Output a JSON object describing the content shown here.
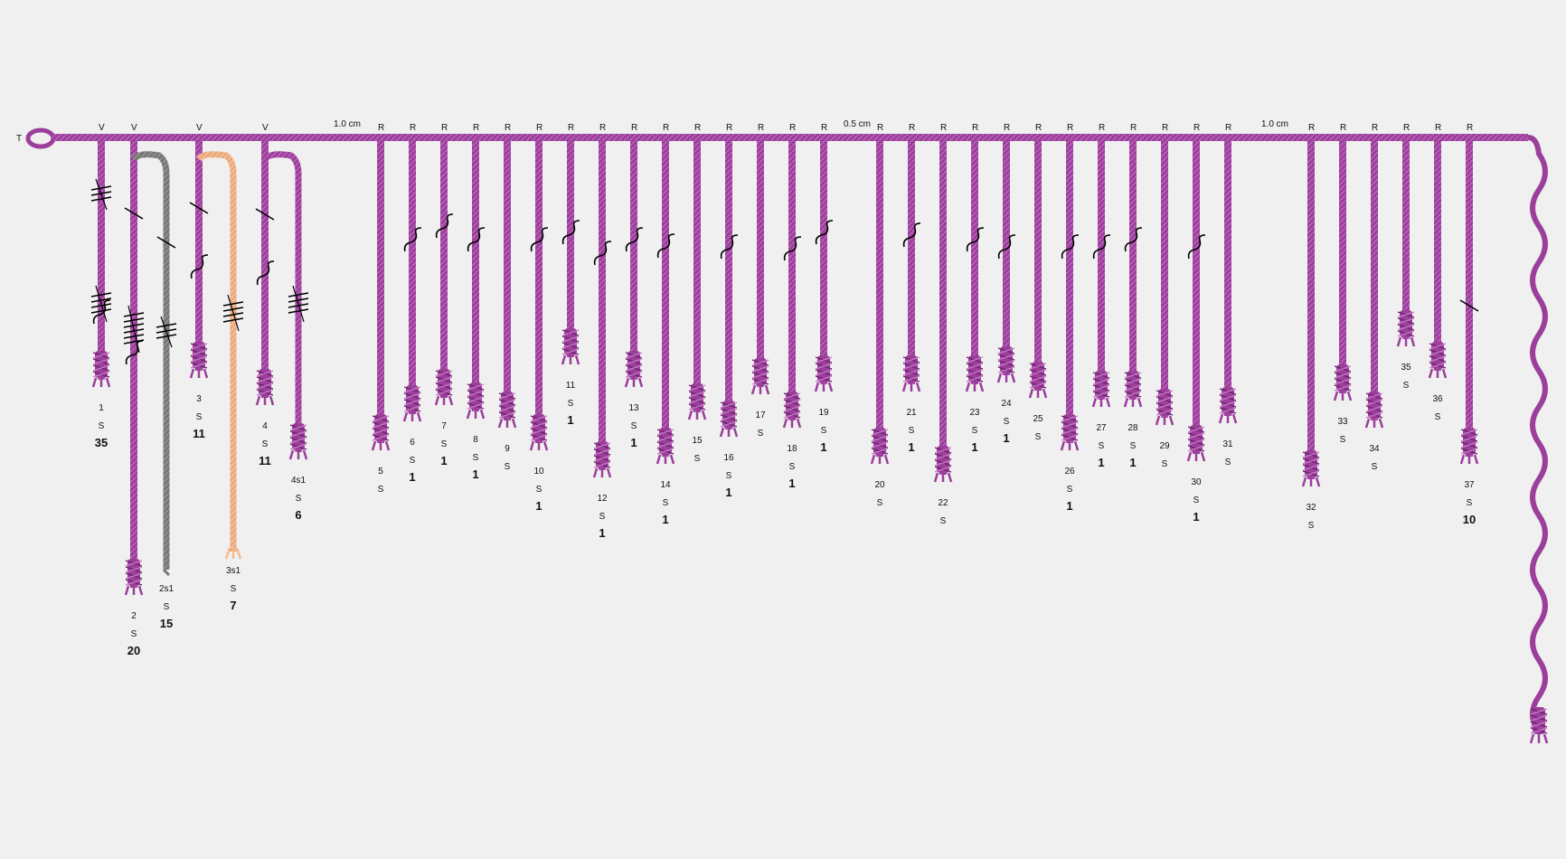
{
  "primary": {
    "start_label": "T",
    "spacing_labels": [
      "1.0 cm",
      "0.5 cm",
      "1.0 cm"
    ]
  },
  "colors": {
    "background": "#f0f0f0",
    "primary_cord": "#9b3f9b",
    "purple": "#9b3f9b",
    "gray": "#777777",
    "peach": "#f4b98e",
    "mark": "#000000"
  },
  "cords": [
    {
      "label": "1",
      "attach": "V",
      "type": "S",
      "value": "35",
      "color": "purple"
    },
    {
      "label": "2",
      "attach": "V",
      "type": "S",
      "value": "20",
      "color": "purple"
    },
    {
      "label": "2s1",
      "attach": "",
      "type": "S",
      "value": "15",
      "color": "gray",
      "subsidiary": true
    },
    {
      "label": "3",
      "attach": "V",
      "type": "S",
      "value": "11",
      "color": "purple"
    },
    {
      "label": "3s1",
      "attach": "",
      "type": "S",
      "value": "7",
      "color": "peach",
      "subsidiary": true
    },
    {
      "label": "4",
      "attach": "V",
      "type": "S",
      "value": "11",
      "color": "purple"
    },
    {
      "label": "4s1",
      "attach": "",
      "type": "S",
      "value": "6",
      "color": "purple",
      "subsidiary": true
    },
    {
      "label": "5",
      "attach": "R",
      "type": "S",
      "value": "",
      "color": "purple"
    },
    {
      "label": "6",
      "attach": "R",
      "type": "S",
      "value": "1",
      "color": "purple"
    },
    {
      "label": "7",
      "attach": "R",
      "type": "S",
      "value": "1",
      "color": "purple"
    },
    {
      "label": "8",
      "attach": "R",
      "type": "S",
      "value": "1",
      "color": "purple"
    },
    {
      "label": "9",
      "attach": "R",
      "type": "S",
      "value": "",
      "color": "purple"
    },
    {
      "label": "10",
      "attach": "R",
      "type": "S",
      "value": "1",
      "color": "purple"
    },
    {
      "label": "11",
      "attach": "R",
      "type": "S",
      "value": "1",
      "color": "purple"
    },
    {
      "label": "12",
      "attach": "R",
      "type": "S",
      "value": "1",
      "color": "purple"
    },
    {
      "label": "13",
      "attach": "R",
      "type": "S",
      "value": "1",
      "color": "purple"
    },
    {
      "label": "14",
      "attach": "R",
      "type": "S",
      "value": "1",
      "color": "purple"
    },
    {
      "label": "15",
      "attach": "R",
      "type": "S",
      "value": "",
      "color": "purple"
    },
    {
      "label": "16",
      "attach": "R",
      "type": "S",
      "value": "1",
      "color": "purple"
    },
    {
      "label": "17",
      "attach": "R",
      "type": "S",
      "value": "",
      "color": "purple"
    },
    {
      "label": "18",
      "attach": "R",
      "type": "S",
      "value": "1",
      "color": "purple"
    },
    {
      "label": "19",
      "attach": "R",
      "type": "S",
      "value": "1",
      "color": "purple"
    },
    {
      "label": "20",
      "attach": "R",
      "type": "S",
      "value": "",
      "color": "purple"
    },
    {
      "label": "21",
      "attach": "R",
      "type": "S",
      "value": "1",
      "color": "purple"
    },
    {
      "label": "22",
      "attach": "R",
      "type": "S",
      "value": "",
      "color": "purple"
    },
    {
      "label": "23",
      "attach": "R",
      "type": "S",
      "value": "1",
      "color": "purple"
    },
    {
      "label": "24",
      "attach": "R",
      "type": "S",
      "value": "1",
      "color": "purple"
    },
    {
      "label": "25",
      "attach": "R",
      "type": "S",
      "value": "",
      "color": "purple"
    },
    {
      "label": "26",
      "attach": "R",
      "type": "S",
      "value": "1",
      "color": "purple"
    },
    {
      "label": "27",
      "attach": "R",
      "type": "S",
      "value": "1",
      "color": "purple"
    },
    {
      "label": "28",
      "attach": "R",
      "type": "S",
      "value": "1",
      "color": "purple"
    },
    {
      "label": "29",
      "attach": "R",
      "type": "S",
      "value": "",
      "color": "purple"
    },
    {
      "label": "30",
      "attach": "R",
      "type": "S",
      "value": "1",
      "color": "purple"
    },
    {
      "label": "31",
      "attach": "R",
      "type": "S",
      "value": "",
      "color": "purple"
    },
    {
      "label": "32",
      "attach": "R",
      "type": "S",
      "value": "",
      "color": "purple"
    },
    {
      "label": "33",
      "attach": "R",
      "type": "S",
      "value": "",
      "color": "purple"
    },
    {
      "label": "34",
      "attach": "R",
      "type": "S",
      "value": "",
      "color": "purple"
    },
    {
      "label": "35",
      "attach": "R",
      "type": "S",
      "value": "",
      "color": "purple"
    },
    {
      "label": "36",
      "attach": "R",
      "type": "S",
      "value": "",
      "color": "purple"
    },
    {
      "label": "37",
      "attach": "R",
      "type": "S",
      "value": "10",
      "color": "purple"
    }
  ]
}
